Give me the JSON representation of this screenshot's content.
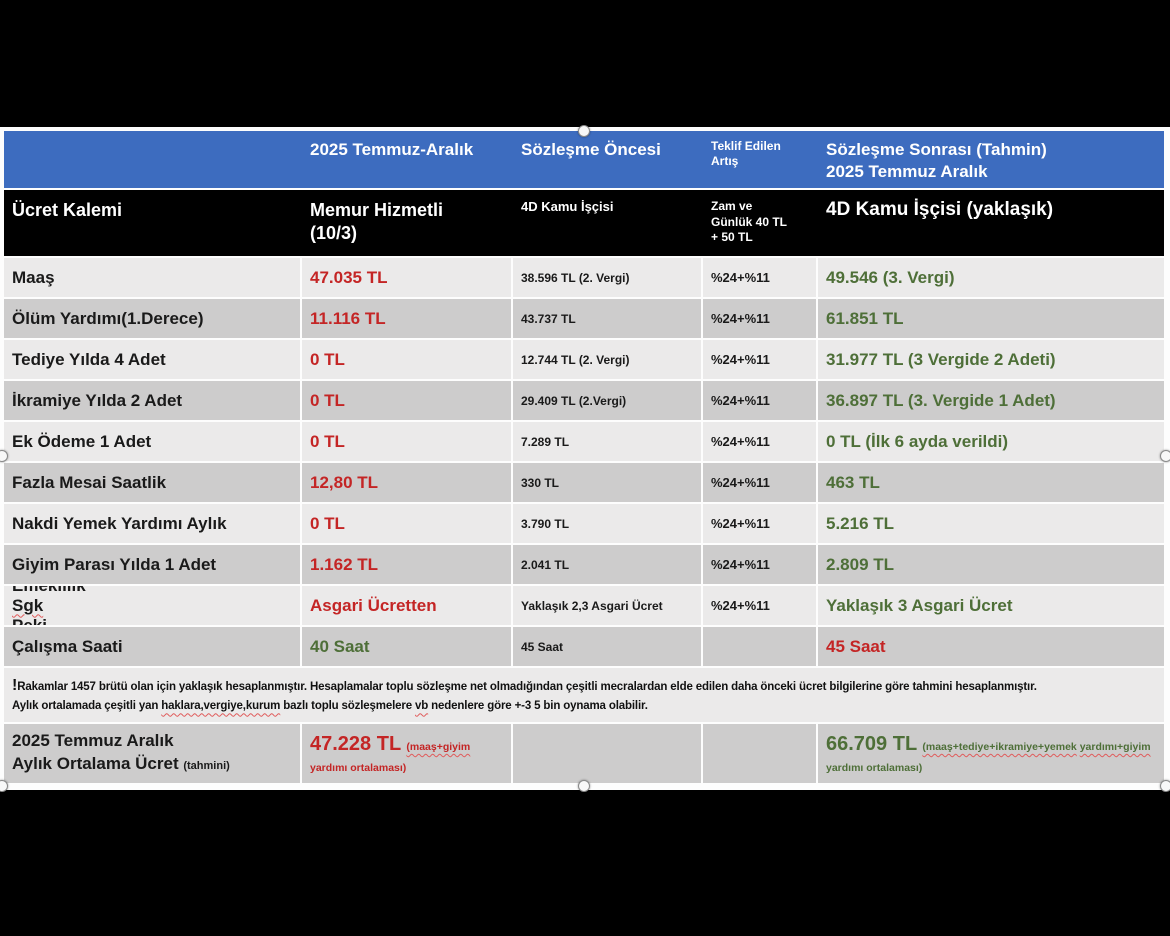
{
  "colors": {
    "red": "#c42525",
    "green": "#4e6f38",
    "black": "#1a1a1a",
    "header_blue_bg": "#3d6cbf",
    "header_black_bg": "#000000",
    "row_light_bg": "#ebeaea",
    "row_dark_bg": "#cdcccc",
    "canvas_bg": "#fdfdfd",
    "page_bg": "#000000",
    "header_text": "#ffffff"
  },
  "table": {
    "header_top": {
      "col1": "",
      "col2": "2025 Temmuz-Aralık",
      "col3": "Sözleşme Öncesi",
      "col4": "Teklif Edilen\nArtış",
      "col5": "Sözleşme Sonrası (Tahmin)\n2025 Temmuz Aralık"
    },
    "header_main": {
      "col1": "Ücret Kalemi",
      "col2": "Memur Hizmetli\n(10/3)",
      "col3": "4D Kamu İşçisi",
      "col4": "Zam ve\nGünlük 40 TL\n+ 50 TL",
      "col5": "4D Kamu İşçisi (yaklaşık)"
    },
    "rows": [
      {
        "label_parts": [
          {
            "t": "Maaş"
          }
        ],
        "memur": "47.035 TL",
        "memur_color": "red",
        "oncesi": "38.596 TL (2. Vergi)",
        "artis": "%24+%11",
        "sonrasi": "49.546 (3. Vergi)",
        "sonrasi_color": "green"
      },
      {
        "label_parts": [
          {
            "t": "Ölüm Yardımı(1.Derece)"
          }
        ],
        "memur": "11.116 TL",
        "memur_color": "red",
        "oncesi": "43.737 TL",
        "artis": "%24+%11",
        "sonrasi": "61.851 TL",
        "sonrasi_color": "green"
      },
      {
        "label_parts": [
          {
            "t": "Tediye Yılda 4 Adet"
          }
        ],
        "memur": "0 TL",
        "memur_color": "red",
        "oncesi": "12.744 TL (2. Vergi)",
        "artis": "%24+%11",
        "sonrasi": "31.977 TL (3 Vergide 2 Adeti)",
        "sonrasi_color": "green"
      },
      {
        "label_parts": [
          {
            "t": "İkramiye Yılda 2 Adet"
          }
        ],
        "memur": "0 TL",
        "memur_color": "red",
        "oncesi": "29.409 TL (2.Vergi)",
        "artis": "%24+%11",
        "sonrasi": "36.897 TL (3. Vergide 1 Adet)",
        "sonrasi_color": "green"
      },
      {
        "label_parts": [
          {
            "t": "Ek Ödeme 1 Adet"
          }
        ],
        "memur": "0 TL",
        "memur_color": "red",
        "oncesi": "7.289 TL",
        "artis": "%24+%11",
        "sonrasi": "0 TL (İlk 6 ayda verildi)",
        "sonrasi_color": "green"
      },
      {
        "label_parts": [
          {
            "t": "Fazla Mesai Saatlik"
          }
        ],
        "memur": "12,80 TL",
        "memur_color": "red",
        "oncesi": "330 TL",
        "artis": "%24+%11",
        "sonrasi": "463 TL",
        "sonrasi_color": "green"
      },
      {
        "label_parts": [
          {
            "t": "Nakdi Yemek Yardımı Aylık"
          }
        ],
        "memur": "0 TL",
        "memur_color": "red",
        "oncesi": "3.790 TL",
        "artis": "%24+%11",
        "sonrasi": "5.216 TL",
        "sonrasi_color": "green"
      },
      {
        "label_parts": [
          {
            "t": "Giyim Parası Yılda 1 Adet"
          }
        ],
        "memur": "1.162 TL",
        "memur_color": "red",
        "oncesi": "2.041 TL",
        "artis": "%24+%11",
        "sonrasi": "2.809 TL",
        "sonrasi_color": "green"
      },
      {
        "label_parts": [
          {
            "t": "Emeklilik "
          },
          {
            "t": "Sgk",
            "wavy": true
          },
          {
            "t": " Peki"
          }
        ],
        "memur": "Asgari Ücretten",
        "memur_color": "red",
        "oncesi": "Yaklaşık 2,3 Asgari Ücret",
        "artis": "%24+%11",
        "sonrasi": "Yaklaşık 3 Asgari Ücret",
        "sonrasi_color": "green"
      },
      {
        "label_parts": [
          {
            "t": "Çalışma Saati"
          }
        ],
        "memur": "40 Saat",
        "memur_color": "green",
        "oncesi": "45 Saat",
        "artis": "",
        "sonrasi": "45 Saat",
        "sonrasi_color": "red"
      }
    ],
    "footnote": {
      "bang": "!",
      "line1": "Rakamlar 1457 brütü olan için yaklaşık hesaplanmıştır. Hesaplamalar toplu sözleşme net olmadığından çeşitli mecralardan elde edilen daha önceki ücret bilgilerine göre tahmini hesaplanmıştır.",
      "line2_parts": [
        {
          "t": "Aylık ortalamada çeşitli yan "
        },
        {
          "t": "haklara,vergiye,kurum",
          "wavy": true
        },
        {
          "t": " bazlı toplu sözleşmelere "
        },
        {
          "t": "vb",
          "wavy": true
        },
        {
          "t": " nedenlere göre +-3 5 bin oynama olabilir."
        }
      ]
    },
    "summary": {
      "label_line1": "2025 Temmuz Aralık",
      "label_line2": "Aylık Ortalama Ücret ",
      "label_note": "(tahmini)",
      "memur_big": "47.228 TL ",
      "memur_color": "red",
      "memur_small_parts": [
        {
          "t": "(maaş+giyim",
          "wavy": true
        },
        {
          "t": " yardımı ortalaması)"
        }
      ],
      "sonrasi_big": "66.709 TL ",
      "sonrasi_color": "green",
      "sonrasi_small_parts": [
        {
          "t": "(maaş+tediye+ikramiye+yemek",
          "wavy": true
        },
        {
          "t": " "
        },
        {
          "t": "yardımı+giyim",
          "wavy": true
        },
        {
          "t": " yardımı ortalaması)"
        }
      ]
    }
  }
}
